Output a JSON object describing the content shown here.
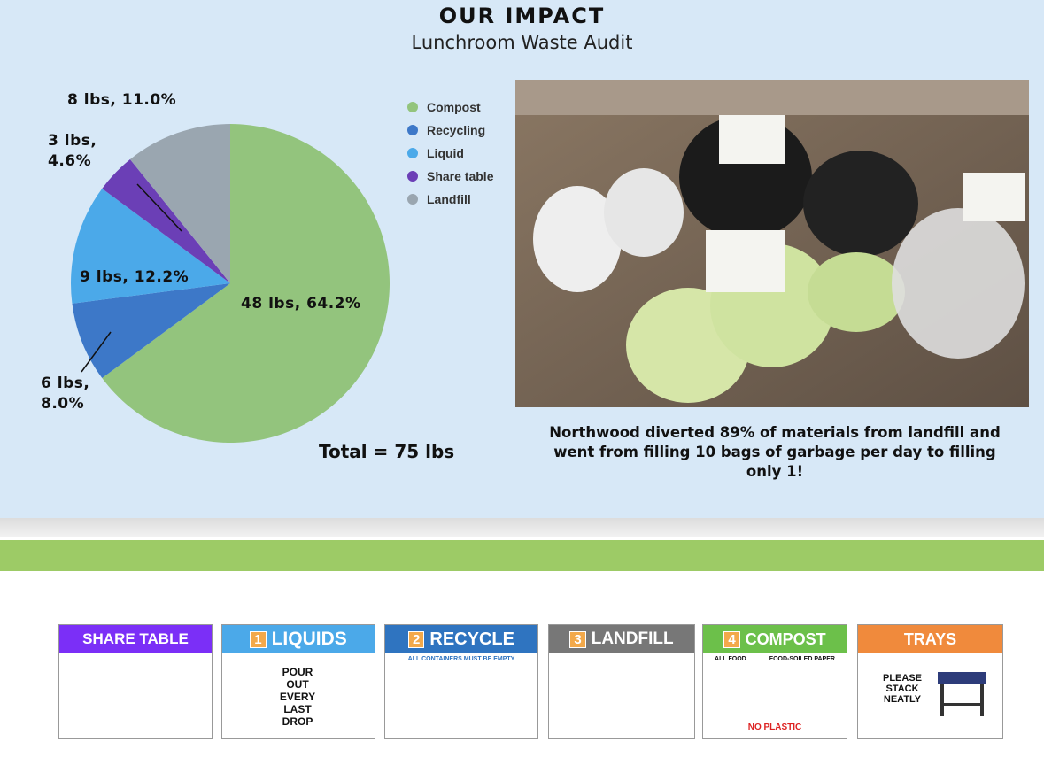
{
  "header": {
    "title": "OUR IMPACT",
    "subtitle": "Lunchroom Waste Audit"
  },
  "chart_data": {
    "type": "pie",
    "categories": [
      "Compost",
      "Recycling",
      "Liquid",
      "Share table",
      "Landfill"
    ],
    "values": [
      48,
      6,
      9,
      3,
      8
    ],
    "value_labels": [
      "48 lbs, 64.2%",
      "6 lbs, 8.0%",
      "9 lbs, 12.2%",
      "3 lbs, 4.6%",
      "8 lbs, 11.0%"
    ],
    "colors": [
      "#93c47d",
      "#3d78c8",
      "#4ba9e9",
      "#6b3fb6",
      "#9aa6b0"
    ],
    "legend": "right",
    "total_label": "Total = 75 lbs"
  },
  "caption": "Northwood diverted 89% of materials from landfill and went from filling 10 bags of garbage per day to filling only 1!",
  "signs": [
    {
      "title": "SHARE TABLE"
    },
    {
      "number": "1",
      "title": "LIQUIDS",
      "text": "POUR OUT EVERY LAST DROP"
    },
    {
      "number": "2",
      "title": "RECYCLE",
      "text": "ALL CONTAINERS MUST BE EMPTY"
    },
    {
      "number": "3",
      "title": "LANDFILL"
    },
    {
      "number": "4",
      "title": "COMPOST",
      "text": "ALL FOOD",
      "text2": "FOOD-SOILED PAPER",
      "footer": "NO PLASTIC"
    },
    {
      "title": "TRAYS",
      "text": "PLEASE STACK NEATLY"
    }
  ]
}
